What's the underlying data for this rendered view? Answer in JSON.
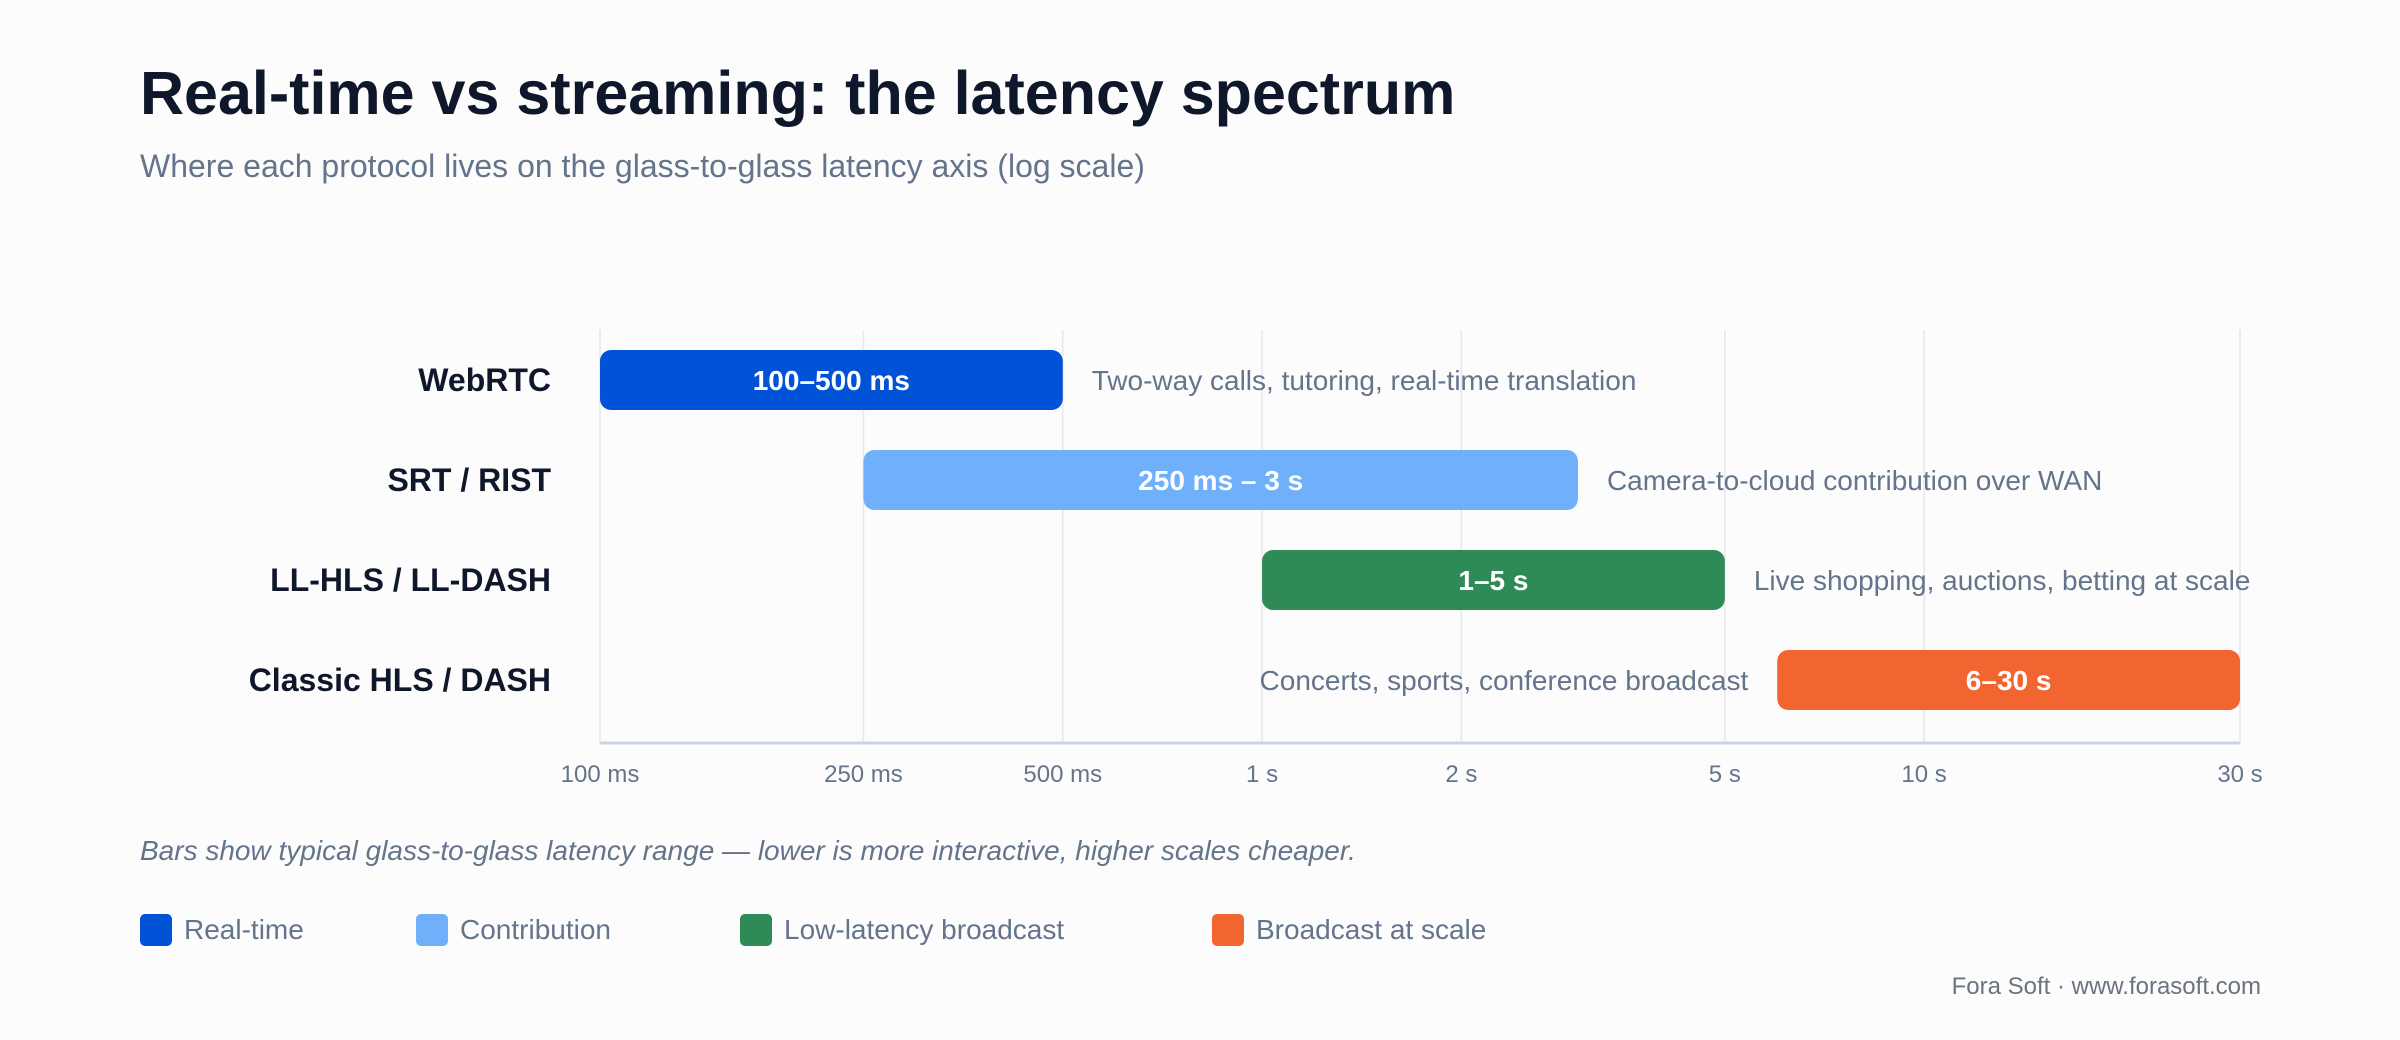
{
  "header": {
    "title": "Real-time vs streaming: the latency spectrum",
    "subtitle": "Where each protocol lives on the glass-to-glass latency axis (log scale)"
  },
  "chart_data": {
    "type": "bar",
    "orientation": "horizontal-range",
    "x_scale": "log",
    "x_unit": "seconds",
    "xlim": [
      0.1,
      30
    ],
    "x_ticks": [
      {
        "value": 0.1,
        "label": "100 ms"
      },
      {
        "value": 0.25,
        "label": "250 ms"
      },
      {
        "value": 0.5,
        "label": "500 ms"
      },
      {
        "value": 1,
        "label": "1 s"
      },
      {
        "value": 2,
        "label": "2 s"
      },
      {
        "value": 5,
        "label": "5 s"
      },
      {
        "value": 10,
        "label": "10 s"
      },
      {
        "value": 30,
        "label": "30 s"
      }
    ],
    "grid": true,
    "bars": [
      {
        "category": "WebRTC",
        "start": 0.1,
        "end": 0.5,
        "label": "100–500 ms",
        "annotation": "Two-way calls, tutoring, real-time translation",
        "annotation_side": "right",
        "color": "#0052d6"
      },
      {
        "category": "SRT / RIST",
        "start": 0.25,
        "end": 3,
        "label": "250 ms – 3 s",
        "annotation": "Camera-to-cloud contribution over WAN",
        "annotation_side": "right",
        "color": "#70b0fb"
      },
      {
        "category": "LL-HLS / LL-DASH",
        "start": 1,
        "end": 5,
        "label": "1–5 s",
        "annotation": "Live shopping, auctions, betting at scale",
        "annotation_side": "right",
        "color": "#2e8b57"
      },
      {
        "category": "Classic HLS / DASH",
        "start": 6,
        "end": 30,
        "label": "6–30 s",
        "annotation": "Concerts, sports, conference broadcast",
        "annotation_side": "left",
        "color": "#f26430"
      }
    ],
    "legend_placement": "bottom"
  },
  "footnote": "Bars show typical glass-to-glass latency range — lower is more interactive, higher scales cheaper.",
  "legend": [
    {
      "label": "Real-time",
      "color": "#0052d6"
    },
    {
      "label": "Contribution",
      "color": "#70b0fb"
    },
    {
      "label": "Low-latency broadcast",
      "color": "#2e8b57"
    },
    {
      "label": "Broadcast at scale",
      "color": "#f26430"
    }
  ],
  "credit": "Fora Soft · www.forasoft.com"
}
